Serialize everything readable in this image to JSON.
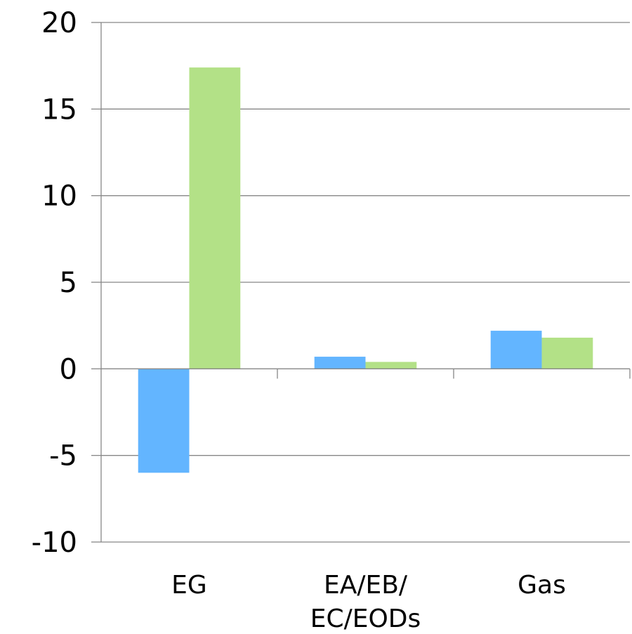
{
  "chart_data": {
    "type": "bar",
    "title": "",
    "xlabel": "",
    "ylabel": "",
    "categories": [
      [
        "EG"
      ],
      [
        "EA/EB/",
        "EC/EODs"
      ],
      [
        "Gas"
      ]
    ],
    "series": [
      {
        "values": [
          -6.0,
          0.7,
          2.2
        ],
        "color": "#63b5ff"
      },
      {
        "values": [
          17.4,
          0.4,
          1.8
        ],
        "color": "#b3e187"
      }
    ],
    "ylim": [
      -10,
      20
    ],
    "yticks": [
      -10,
      -5,
      0,
      5,
      10,
      15,
      20
    ],
    "grid": true,
    "legend": "none"
  }
}
